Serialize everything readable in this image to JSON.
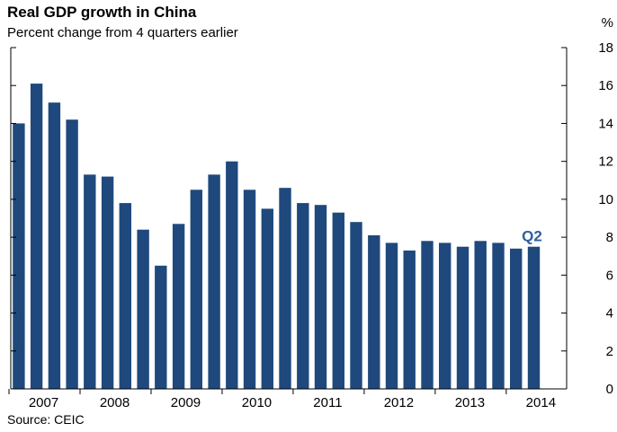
{
  "chart_data": {
    "type": "bar",
    "title": "Real GDP growth in China",
    "subtitle": "Percent change from 4 quarters earlier",
    "ylabel": "%",
    "ylim": [
      0,
      18
    ],
    "yticks": [
      0,
      2,
      4,
      6,
      8,
      10,
      12,
      14,
      16,
      18
    ],
    "xtick_labels": [
      "2007",
      "2008",
      "2009",
      "2010",
      "2011",
      "2012",
      "2013",
      "2014"
    ],
    "series": [
      {
        "color": "#1f497d",
        "values": [
          14.0,
          16.1,
          15.1,
          14.2,
          11.3,
          11.2,
          9.8,
          8.4,
          6.5,
          8.7,
          10.5,
          11.3,
          12.0,
          10.5,
          9.5,
          10.6,
          9.8,
          9.7,
          9.3,
          8.8,
          8.1,
          7.7,
          7.3,
          7.8,
          7.7,
          7.5,
          7.8,
          7.7,
          7.4,
          7.5
        ]
      }
    ],
    "annotation": {
      "text": "Q2",
      "color": "#2e5fa0"
    },
    "source": "Source: CEIC",
    "grid": false
  }
}
